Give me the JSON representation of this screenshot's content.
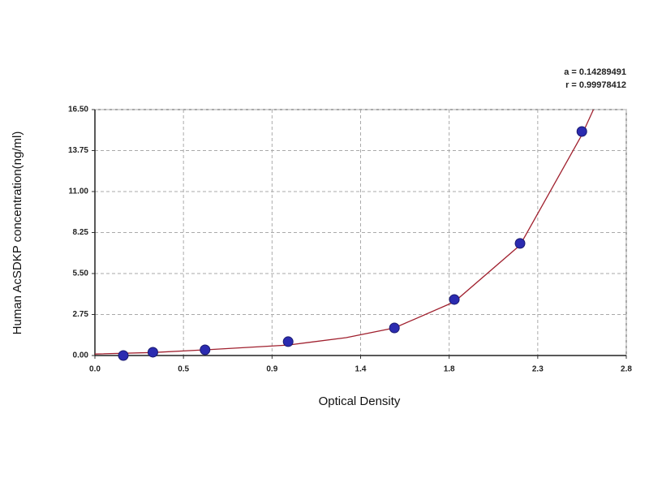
{
  "chart_data": {
    "type": "scatter",
    "x_label": "Optical Density",
    "y_label": "Human AcSDKP concentration(ng/ml)",
    "annotations": [
      "a = 0.14289491",
      "r = 0.99978412"
    ],
    "xlim": [
      0,
      2.75
    ],
    "ylim": [
      0,
      16.5
    ],
    "xticks": [
      {
        "value": 0,
        "label": "0.0"
      },
      {
        "value": 0.4583,
        "label": "0.5"
      },
      {
        "value": 0.9167,
        "label": "0.9"
      },
      {
        "value": 1.375,
        "label": "1.4"
      },
      {
        "value": 1.8333,
        "label": "1.8"
      },
      {
        "value": 2.2917,
        "label": "2.3"
      },
      {
        "value": 2.75,
        "label": "2.8"
      }
    ],
    "yticks": [
      {
        "value": 0,
        "label": "0.00"
      },
      {
        "value": 2.75,
        "label": "2.75"
      },
      {
        "value": 5.5,
        "label": "5.50"
      },
      {
        "value": 8.25,
        "label": "8.25"
      },
      {
        "value": 11,
        "label": "11.00"
      },
      {
        "value": 13.75,
        "label": "13.75"
      },
      {
        "value": 16.5,
        "label": "16.50"
      }
    ],
    "grid": true,
    "series": [
      {
        "color": "#2b2bb0",
        "x": [
          0.147,
          0.3,
          0.57,
          1.0,
          1.55,
          1.86,
          2.2,
          2.52
        ],
        "values": [
          0,
          0.22,
          0.38,
          0.93,
          1.85,
          3.76,
          7.52,
          15.03
        ]
      },
      {
        "type": "line",
        "color": "#a0202e",
        "x": [
          0,
          0.3,
          0.6,
          1.0,
          1.3,
          1.55,
          1.86,
          2.2,
          2.52,
          2.58
        ],
        "values": [
          0.1,
          0.2,
          0.4,
          0.7,
          1.2,
          1.85,
          3.6,
          7.4,
          14.8,
          16.5
        ]
      }
    ]
  }
}
